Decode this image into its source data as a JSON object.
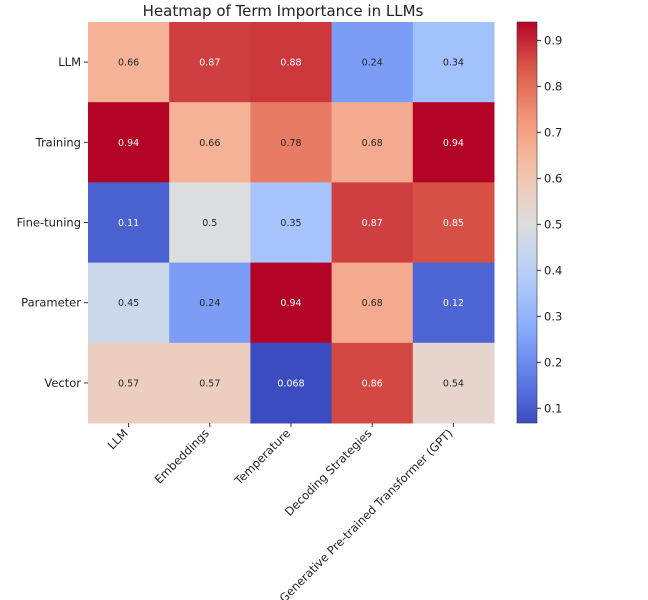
{
  "chart_data": {
    "type": "heatmap",
    "title": "Heatmap of Term Importance in LLMs",
    "row_labels": [
      "LLM",
      "Training",
      "Fine-tuning",
      "Parameter",
      "Vector"
    ],
    "col_labels": [
      "LLM",
      "Embeddings",
      "Temperature",
      "Decoding Strategies",
      "Generative Pre-trained Transformer (GPT)"
    ],
    "values": [
      [
        0.66,
        0.87,
        0.88,
        0.24,
        0.34
      ],
      [
        0.94,
        0.66,
        0.78,
        0.68,
        0.94
      ],
      [
        0.11,
        0.5,
        0.35,
        0.87,
        0.85
      ],
      [
        0.45,
        0.24,
        0.94,
        0.68,
        0.12
      ],
      [
        0.57,
        0.57,
        0.068,
        0.86,
        0.54
      ]
    ],
    "cell_text": [
      [
        "0.66",
        "0.87",
        "0.88",
        "0.24",
        "0.34"
      ],
      [
        "0.94",
        "0.66",
        "0.78",
        "0.68",
        "0.94"
      ],
      [
        "0.11",
        "0.5",
        "0.35",
        "0.87",
        "0.85"
      ],
      [
        "0.45",
        "0.24",
        "0.94",
        "0.68",
        "0.12"
      ],
      [
        "0.57",
        "0.57",
        "0.068",
        "0.86",
        "0.54"
      ]
    ],
    "colormap": "coolwarm",
    "vmin": 0.068,
    "vmax": 0.94,
    "colorbar_ticks": [
      0.1,
      0.2,
      0.3,
      0.4,
      0.5,
      0.6,
      0.7,
      0.8,
      0.9
    ],
    "colorbar_tick_labels": [
      "0.1",
      "0.2",
      "0.3",
      "0.4",
      "0.5",
      "0.6",
      "0.7",
      "0.8",
      "0.9"
    ],
    "legend_position": "right"
  }
}
